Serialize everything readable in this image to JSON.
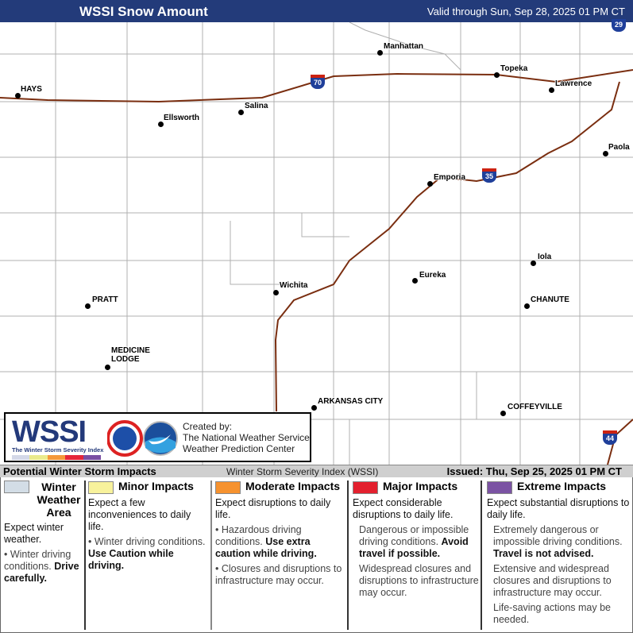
{
  "header": {
    "title": "WSSI Snow Amount",
    "valid": "Valid through Sun, Sep 28, 2025 01 PM CT"
  },
  "map": {
    "cities": [
      {
        "name": "HAYS"
      },
      {
        "name": "Ellsworth"
      },
      {
        "name": "Salina"
      },
      {
        "name": "Manhattan"
      },
      {
        "name": "Topeka"
      },
      {
        "name": "Lawrence"
      },
      {
        "name": "Paola"
      },
      {
        "name": "Emporia"
      },
      {
        "name": "Iola"
      },
      {
        "name": "CHANUTE"
      },
      {
        "name": "Eureka"
      },
      {
        "name": "Wichita"
      },
      {
        "name": "PRATT"
      },
      {
        "name": "MEDICINE LODGE"
      },
      {
        "name": "ARKANSAS CITY"
      },
      {
        "name": "COFFEYVILLE"
      }
    ],
    "interstates": [
      "70",
      "35",
      "29",
      "44"
    ],
    "colors": {
      "highway": "#7a2e10",
      "county_line": "#b0b0b0",
      "shield": "#1f3f9a"
    }
  },
  "logo": {
    "wssi": "WSSI",
    "subtitle": "The Winter Storm Severity Index",
    "created_by": "Created by:",
    "org1": "The National Weather Service",
    "org2": "Weather Prediction Center",
    "scale_colors": [
      "#d4d8e8",
      "#eaea8c",
      "#f5983a",
      "#e5263a",
      "#7a4fa3"
    ]
  },
  "title_bar": {
    "left": "Potential Winter Storm Impacts",
    "center": "Winter Storm Severity Index (WSSI)",
    "issued": "Issued: Thu, Sep 25, 2025 01 PM CT"
  },
  "legend": [
    {
      "title": "Winter Weather Area",
      "color": "#d3dde6",
      "heading": "Expect winter weather.",
      "bullets": [
        {
          "text": "Winter driving conditions.",
          "bold": "Drive carefully."
        }
      ]
    },
    {
      "title": "Minor Impacts",
      "color": "#f8f29c",
      "heading": "Expect a few inconveniences to daily life.",
      "bullets": [
        {
          "text": "Winter driving conditions.",
          "bold": "Use Caution while driving."
        }
      ]
    },
    {
      "title": "Moderate Impacts",
      "color": "#f6922f",
      "heading": "Expect disruptions to daily life.",
      "bullets": [
        {
          "text": "Hazardous driving conditions.",
          "bold": "Use extra caution while driving."
        },
        {
          "text": "Closures and disruptions to infrastructure may occur.",
          "bold": ""
        }
      ]
    },
    {
      "title": "Major Impacts",
      "color": "#e3202e",
      "heading": "Expect considerable disruptions to daily life.",
      "bullets": [
        {
          "text": "Dangerous or impossible driving conditions.",
          "bold": "Avoid travel if possible."
        },
        {
          "text": "Widespread closures and disruptions to infrastructure may occur.",
          "bold": ""
        }
      ]
    },
    {
      "title": "Extreme Impacts",
      "color": "#7b53a3",
      "heading": "Expect substantial disruptions to daily life.",
      "bullets": [
        {
          "text": "Extremely dangerous or impossible driving conditions.",
          "bold": "Travel is not advised."
        },
        {
          "text": "Extensive and widespread closures and disruptions to infrastructure may occur.",
          "bold": ""
        },
        {
          "text": "Life-saving actions may be needed.",
          "bold": ""
        }
      ]
    }
  ]
}
